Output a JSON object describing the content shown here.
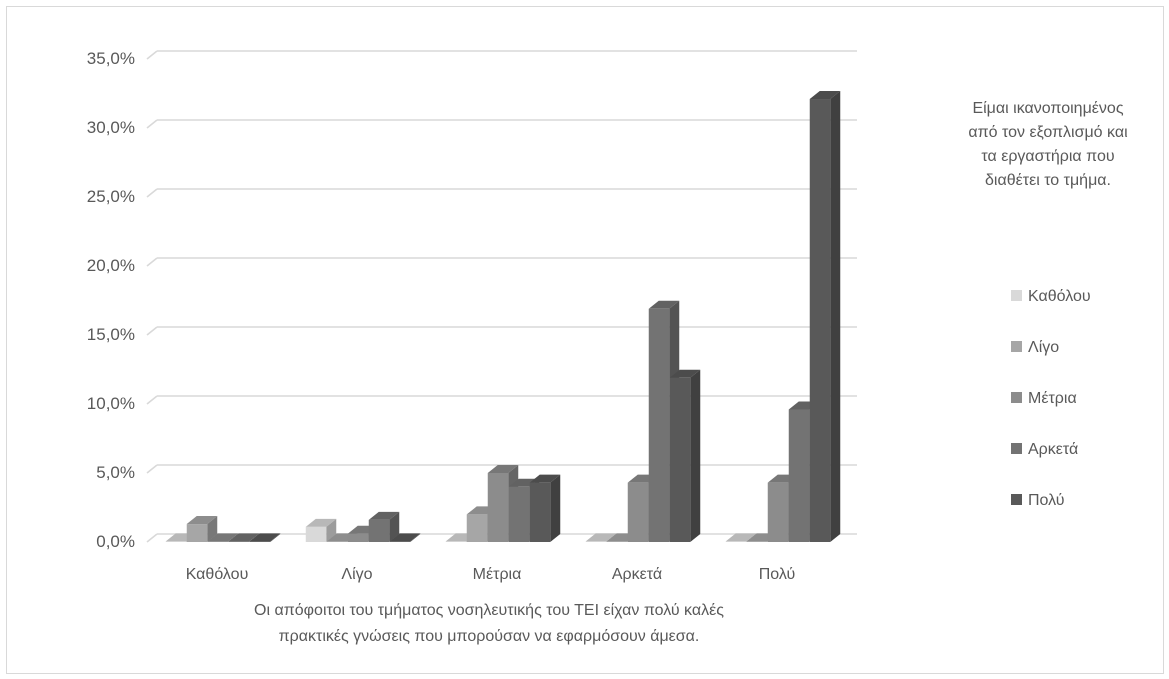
{
  "chart_data": {
    "type": "bar",
    "subtype": "3d-clustered-column",
    "categories": [
      "Καθόλου",
      "Λίγο",
      "Μέτρια",
      "Αρκετά",
      "Πολύ"
    ],
    "xlabel_lines": [
      "Οι απόφοιτοι του τμήματος νοσηλευτικής του ΤΕΙ είχαν πολύ καλές",
      "πρακτικές γνώσεις που μπορούσαν να εφαρμόσουν άμεσα."
    ],
    "legend_title_lines": [
      "Είμαι ικανοποιημένος",
      "από τον εξοπλισμό και",
      "τα εργαστήρια που",
      "διαθέτει το τμήμα."
    ],
    "legend_position": "right",
    "ylim": [
      0,
      35
    ],
    "ytick_values": [
      0,
      5,
      10,
      15,
      20,
      25,
      30,
      35
    ],
    "ytick_labels": [
      "0,0%",
      "5,0%",
      "10,0%",
      "15,0%",
      "20,0%",
      "25,0%",
      "30,0%",
      "35,0%"
    ],
    "grid": true,
    "series": [
      {
        "name": "Καθόλου",
        "color": "#d9d9d9",
        "values": [
          0,
          1.1,
          0,
          0,
          0
        ]
      },
      {
        "name": "Λίγο",
        "color": "#a6a6a6",
        "values": [
          1.3,
          0,
          2.0,
          0,
          0
        ]
      },
      {
        "name": "Μέτρια",
        "color": "#8c8c8c",
        "values": [
          0,
          0.6,
          5.0,
          4.3,
          4.3
        ]
      },
      {
        "name": "Αρκετά",
        "color": "#737373",
        "values": [
          0,
          1.6,
          4.0,
          16.9,
          9.6
        ]
      },
      {
        "name": "Πολύ",
        "color": "#595959",
        "values": [
          0,
          0,
          4.3,
          11.9,
          32.1
        ]
      }
    ]
  }
}
